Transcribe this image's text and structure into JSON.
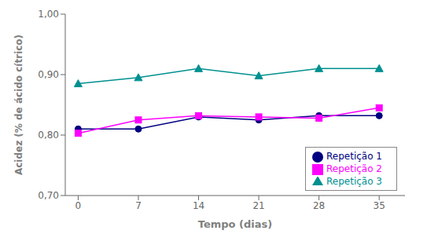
{
  "chart_data": {
    "type": "line",
    "x": [
      0,
      7,
      14,
      21,
      28,
      35
    ],
    "series": [
      {
        "name": "Repetição 1",
        "color": "#000080",
        "marker": "circle",
        "values": [
          0.81,
          0.81,
          0.83,
          0.825,
          0.832,
          0.832
        ]
      },
      {
        "name": "Repetição 2",
        "color": "#FF00FF",
        "marker": "square",
        "values": [
          0.803,
          0.825,
          0.832,
          0.83,
          0.828,
          0.845
        ]
      },
      {
        "name": "Repetição 3",
        "color": "#009090",
        "marker": "triangle",
        "values": [
          0.885,
          0.895,
          0.91,
          0.898,
          0.91,
          0.91
        ]
      }
    ],
    "x_label": "Tempo (dias)",
    "y_label": "Acidez (% de ácido cítrico)",
    "xlim": [
      -1.5,
      38
    ],
    "ylim": [
      0.7,
      1.0
    ],
    "xticks": [
      0,
      7,
      14,
      21,
      28,
      35
    ],
    "yticks": [
      {
        "value": 0.7,
        "label": "0,70"
      },
      {
        "value": 0.8,
        "label": "0,80"
      },
      {
        "value": 0.9,
        "label": "0,90"
      },
      {
        "value": 1.0,
        "label": "1,00"
      }
    ],
    "grid": false,
    "legend": "lower right"
  }
}
